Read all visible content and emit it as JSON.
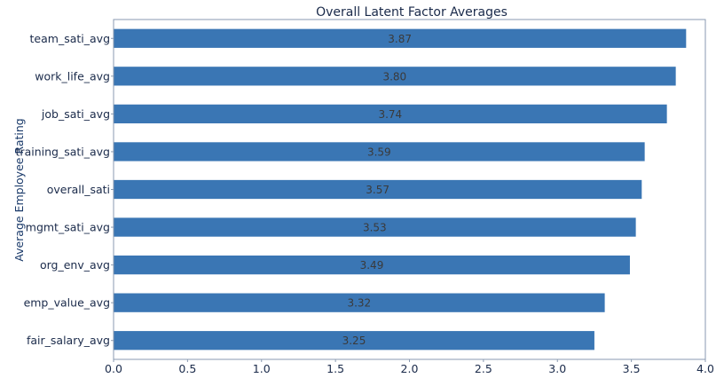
{
  "chart_data": {
    "type": "bar",
    "orientation": "horizontal",
    "title": "Overall Latent Factor Averages",
    "xlabel": "",
    "ylabel": "Average Employee Rating",
    "categories": [
      "team_sati_avg",
      "work_life_avg",
      "job_sati_avg",
      "training_sati_avg",
      "overall_sati",
      "mgmt_sati_avg",
      "org_env_avg",
      "emp_value_avg",
      "fair_salary_avg"
    ],
    "values": [
      3.87,
      3.8,
      3.74,
      3.59,
      3.57,
      3.53,
      3.49,
      3.32,
      3.25
    ],
    "data_labels": [
      "3.87",
      "3.80",
      "3.74",
      "3.59",
      "3.57",
      "3.53",
      "3.49",
      "3.32",
      "3.25"
    ],
    "xlim": [
      0,
      4.0
    ],
    "xticks": [
      0.0,
      0.5,
      1.0,
      1.5,
      2.0,
      2.5,
      3.0,
      3.5,
      4.0
    ],
    "xtick_labels": [
      "0.0",
      "0.5",
      "1.0",
      "1.5",
      "2.0",
      "2.5",
      "3.0",
      "3.5",
      "4.0"
    ],
    "bar_color": "#3a76b4",
    "frame_color": "#8a9ab0",
    "grid": false,
    "legend": "none"
  }
}
